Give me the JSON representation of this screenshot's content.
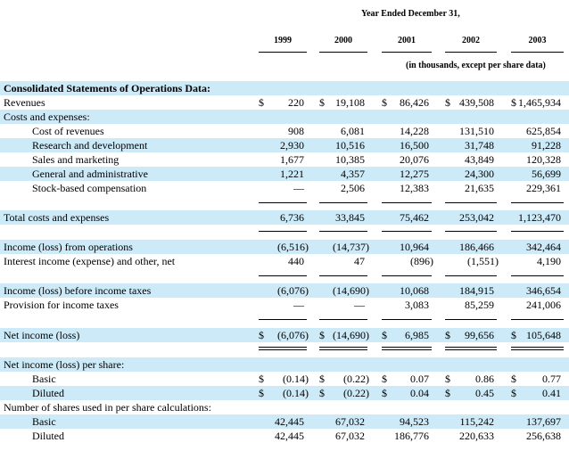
{
  "header": {
    "period": "Year Ended December 31,",
    "years": [
      "1999",
      "2000",
      "2001",
      "2002",
      "2003"
    ],
    "note": "(in thousands, except per share data)"
  },
  "table": {
    "rows": [
      {
        "label": "Consolidated Statements of Operations Data:"
      },
      {
        "label": "Revenues",
        "cells": [
          {
            "sign": "$",
            "amount": "220"
          },
          {
            "sign": "$",
            "amount": "19,108"
          },
          {
            "sign": "$",
            "amount": "86,426"
          },
          {
            "sign": "$",
            "amount": "439,508"
          },
          {
            "sign": "$",
            "amount": "1,465,934"
          }
        ]
      },
      {
        "label": "Costs and expenses:"
      },
      {
        "label": "Cost of revenues",
        "cells": [
          "908",
          "6,081",
          "14,228",
          "131,510",
          "625,854"
        ]
      },
      {
        "label": "Research and development",
        "cells": [
          "2,930",
          "10,516",
          "16,500",
          "31,748",
          "91,228"
        ]
      },
      {
        "label": "Sales and marketing",
        "cells": [
          "1,677",
          "10,385",
          "20,076",
          "43,849",
          "120,328"
        ]
      },
      {
        "label": "General and administrative",
        "cells": [
          "1,221",
          "4,357",
          "12,275",
          "24,300",
          "56,699"
        ]
      },
      {
        "label": "Stock-based compensation",
        "cells": [
          "—",
          "2,506",
          "12,383",
          "21,635",
          "229,361"
        ]
      },
      {
        "label": "Total costs and expenses",
        "cells": [
          "6,736",
          "33,845",
          "75,462",
          "253,042",
          "1,123,470"
        ]
      },
      {
        "label": "Income (loss) from operations",
        "cells": [
          "(6,516)",
          "(14,737)",
          "10,964",
          "186,466",
          "342,464"
        ]
      },
      {
        "label": "Interest income (expense) and other, net",
        "cells": [
          "440",
          "47",
          "(896)",
          "(1,551)",
          "4,190"
        ]
      },
      {
        "label": "Income (loss) before income taxes",
        "cells": [
          "(6,076)",
          "(14,690)",
          "10,068",
          "184,915",
          "346,654"
        ]
      },
      {
        "label": "Provision for income taxes",
        "cells": [
          "—",
          "—",
          "3,083",
          "85,259",
          "241,006"
        ]
      },
      {
        "label": "Net income (loss)",
        "cells": [
          {
            "sign": "$",
            "amount": "(6,076)"
          },
          {
            "sign": "$",
            "amount": "(14,690)"
          },
          {
            "sign": "$",
            "amount": "6,985"
          },
          {
            "sign": "$",
            "amount": "99,656"
          },
          {
            "sign": "$",
            "amount": "105,648"
          }
        ]
      },
      {
        "label": "Net income (loss) per share:"
      },
      {
        "label": "Basic",
        "cells": [
          {
            "sign": "$",
            "amount": "(0.14)"
          },
          {
            "sign": "$",
            "amount": "(0.22)"
          },
          {
            "sign": "$",
            "amount": "0.07"
          },
          {
            "sign": "$",
            "amount": "0.86"
          },
          {
            "sign": "$",
            "amount": "0.77"
          }
        ]
      },
      {
        "label": "Diluted",
        "cells": [
          {
            "sign": "$",
            "amount": "(0.14)"
          },
          {
            "sign": "$",
            "amount": "(0.22)"
          },
          {
            "sign": "$",
            "amount": "0.04"
          },
          {
            "sign": "$",
            "amount": "0.45"
          },
          {
            "sign": "$",
            "amount": "0.41"
          }
        ]
      },
      {
        "label": "Number of shares used in per share calculations:"
      },
      {
        "label": "Basic",
        "cells": [
          "42,445",
          "67,032",
          "94,523",
          "115,242",
          "137,697"
        ]
      },
      {
        "label": "Diluted",
        "cells": [
          "42,445",
          "67,032",
          "186,776",
          "220,633",
          "256,638"
        ]
      }
    ]
  }
}
